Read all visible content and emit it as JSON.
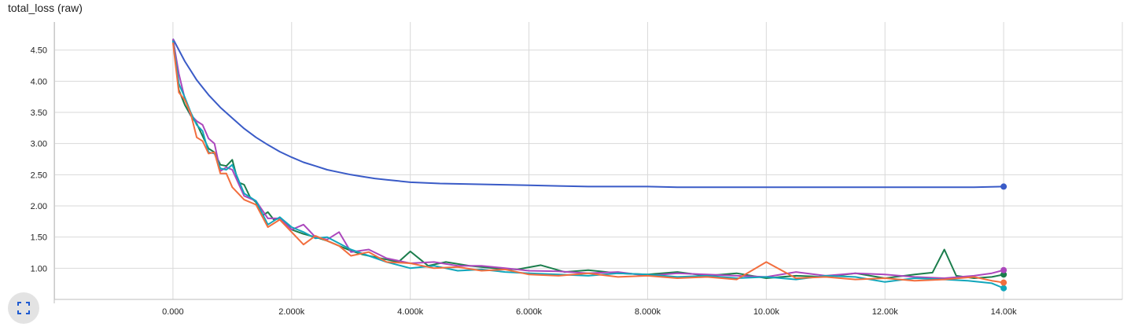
{
  "chart_data": {
    "type": "line",
    "title": "total_loss (raw)",
    "xlabel": "",
    "ylabel": "",
    "xlim": [
      -2000,
      16000
    ],
    "ylim": [
      0.5,
      4.95
    ],
    "x_ticks": [
      0,
      2000,
      4000,
      6000,
      8000,
      10000,
      12000,
      14000
    ],
    "x_tick_labels": [
      "0.000",
      "2.000k",
      "4.000k",
      "6.000k",
      "8.000k",
      "10.00k",
      "12.00k",
      "14.00k"
    ],
    "y_ticks": [
      1.0,
      1.5,
      2.0,
      2.5,
      3.0,
      3.5,
      4.0,
      4.5
    ],
    "y_tick_labels": [
      "1.00",
      "1.50",
      "2.00",
      "2.50",
      "3.00",
      "3.50",
      "4.00",
      "4.50"
    ],
    "grid": true,
    "legend": "none",
    "series": [
      {
        "color": "#3a5bc7",
        "x": [
          0,
          200,
          400,
          600,
          800,
          1000,
          1200,
          1400,
          1600,
          1800,
          2000,
          2200,
          2400,
          2600,
          2800,
          3000,
          3200,
          3400,
          3600,
          3800,
          4000,
          4500,
          5000,
          5500,
          6000,
          6500,
          7000,
          7500,
          8000,
          8500,
          9000,
          9500,
          10000,
          10500,
          11000,
          11500,
          12000,
          12500,
          13000,
          13500,
          14000
        ],
        "y": [
          4.68,
          4.32,
          4.02,
          3.78,
          3.58,
          3.41,
          3.24,
          3.1,
          2.98,
          2.87,
          2.78,
          2.7,
          2.64,
          2.58,
          2.54,
          2.5,
          2.47,
          2.44,
          2.42,
          2.4,
          2.38,
          2.36,
          2.35,
          2.34,
          2.33,
          2.32,
          2.31,
          2.31,
          2.31,
          2.3,
          2.3,
          2.3,
          2.3,
          2.3,
          2.3,
          2.3,
          2.3,
          2.3,
          2.3,
          2.3,
          2.31
        ]
      },
      {
        "color": "#1b7d4c",
        "x": [
          0,
          100,
          200,
          300,
          400,
          500,
          600,
          700,
          800,
          900,
          1000,
          1100,
          1200,
          1300,
          1400,
          1500,
          1600,
          1700,
          1800,
          1900,
          2000,
          2200,
          2400,
          2600,
          2800,
          3000,
          3200,
          3400,
          3600,
          3800,
          4000,
          4300,
          4600,
          5000,
          5400,
          5800,
          6200,
          6600,
          7000,
          7500,
          8000,
          8500,
          9000,
          9500,
          10000,
          10500,
          11000,
          11500,
          12000,
          12500,
          12800,
          13000,
          13200,
          13500,
          13800,
          14000
        ],
        "y": [
          4.66,
          3.86,
          3.62,
          3.45,
          3.32,
          3.12,
          2.92,
          2.86,
          2.66,
          2.64,
          2.74,
          2.38,
          2.34,
          2.14,
          2.06,
          1.84,
          1.9,
          1.78,
          1.8,
          1.72,
          1.62,
          1.55,
          1.5,
          1.44,
          1.36,
          1.28,
          1.22,
          1.18,
          1.14,
          1.1,
          1.27,
          1.04,
          1.1,
          1.04,
          1.0,
          0.98,
          1.05,
          0.94,
          0.97,
          0.92,
          0.9,
          0.94,
          0.88,
          0.92,
          0.84,
          0.88,
          0.86,
          0.92,
          0.84,
          0.9,
          0.93,
          1.3,
          0.88,
          0.84,
          0.86,
          0.9
        ]
      },
      {
        "color": "#ab47bc",
        "x": [
          0,
          100,
          200,
          300,
          400,
          500,
          600,
          700,
          800,
          900,
          1000,
          1200,
          1400,
          1600,
          1800,
          2000,
          2200,
          2400,
          2600,
          2800,
          3000,
          3300,
          3600,
          4000,
          4400,
          4800,
          5200,
          5600,
          6000,
          6500,
          7000,
          7500,
          8000,
          8500,
          9000,
          9500,
          10000,
          10500,
          11000,
          11500,
          12000,
          12500,
          13000,
          13500,
          13800,
          14000
        ],
        "y": [
          4.68,
          4.12,
          3.72,
          3.46,
          3.36,
          3.3,
          3.08,
          3.0,
          2.56,
          2.62,
          2.58,
          2.16,
          2.08,
          1.8,
          1.8,
          1.62,
          1.7,
          1.5,
          1.46,
          1.58,
          1.26,
          1.3,
          1.16,
          1.08,
          1.1,
          1.04,
          1.04,
          1.0,
          0.96,
          0.95,
          0.92,
          0.94,
          0.88,
          0.92,
          0.9,
          0.88,
          0.86,
          0.94,
          0.88,
          0.92,
          0.9,
          0.86,
          0.84,
          0.88,
          0.92,
          0.97
        ]
      },
      {
        "color": "#12a6bb",
        "x": [
          0,
          100,
          200,
          300,
          400,
          500,
          600,
          700,
          800,
          900,
          1000,
          1200,
          1400,
          1600,
          1800,
          2000,
          2200,
          2400,
          2600,
          2800,
          3000,
          3300,
          3600,
          4000,
          4400,
          4800,
          5200,
          5600,
          6000,
          6500,
          7000,
          7500,
          8000,
          8500,
          9000,
          9500,
          10000,
          10500,
          11000,
          11500,
          12000,
          12500,
          13000,
          13400,
          13800,
          14000
        ],
        "y": [
          4.65,
          3.96,
          3.74,
          3.5,
          3.3,
          3.2,
          2.86,
          2.84,
          2.6,
          2.58,
          2.66,
          2.2,
          2.08,
          1.7,
          1.82,
          1.66,
          1.58,
          1.48,
          1.5,
          1.4,
          1.3,
          1.2,
          1.1,
          1.0,
          1.04,
          0.96,
          0.98,
          0.94,
          0.92,
          0.9,
          0.88,
          0.92,
          0.9,
          0.86,
          0.88,
          0.84,
          0.86,
          0.82,
          0.88,
          0.86,
          0.78,
          0.84,
          0.82,
          0.8,
          0.76,
          0.68
        ]
      },
      {
        "color": "#f26e3e",
        "x": [
          0,
          100,
          200,
          300,
          400,
          500,
          600,
          700,
          800,
          900,
          1000,
          1200,
          1400,
          1600,
          1800,
          2000,
          2200,
          2400,
          2600,
          2800,
          3000,
          3300,
          3600,
          4000,
          4400,
          4800,
          5200,
          5600,
          6000,
          6500,
          7000,
          7500,
          8000,
          8500,
          9000,
          9500,
          10000,
          10500,
          11000,
          11500,
          12000,
          12500,
          13000,
          13500,
          13800,
          14000
        ],
        "y": [
          4.62,
          3.82,
          3.7,
          3.48,
          3.1,
          3.04,
          2.84,
          2.86,
          2.52,
          2.52,
          2.3,
          2.1,
          2.02,
          1.66,
          1.78,
          1.58,
          1.38,
          1.52,
          1.44,
          1.36,
          1.2,
          1.26,
          1.1,
          1.08,
          1.0,
          1.02,
          0.96,
          0.98,
          0.9,
          0.88,
          0.92,
          0.86,
          0.88,
          0.84,
          0.86,
          0.82,
          1.1,
          0.84,
          0.86,
          0.82,
          0.84,
          0.8,
          0.82,
          0.86,
          0.8,
          0.77
        ]
      }
    ]
  },
  "ui": {
    "expand_icon": "fullscreen-icon"
  }
}
